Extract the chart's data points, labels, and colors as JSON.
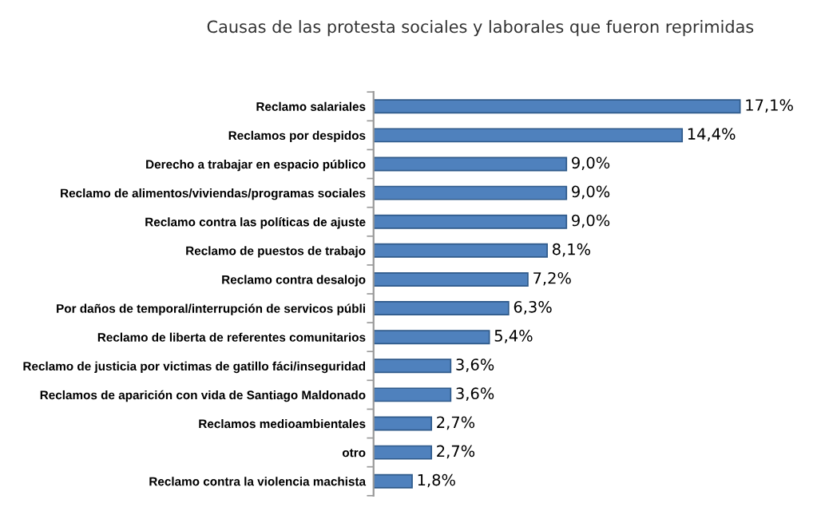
{
  "chart_data": {
    "type": "bar",
    "orientation": "horizontal",
    "title": "Causas de las protesta sociales y laborales que fueron reprimidas",
    "categories": [
      "Reclamo salariales",
      "Reclamos por despidos",
      "Derecho a trabajar en espacio público",
      "Reclamo de alimentos/viviendas/programas sociales",
      "Reclamo contra las políticas de ajuste",
      "Reclamo de puestos de trabajo",
      "Reclamo contra desalojo",
      "Por daños de temporal/interrupción de servicos públi",
      "Reclamo de liberta de referentes comunitarios",
      "Reclamo de justicia por victimas de gatillo fáci/inseguridad",
      "Reclamos de aparición con vida de Santiago Maldonado",
      "Reclamos medioambientales",
      "otro",
      "Reclamo contra la violencia machista"
    ],
    "values": [
      17.1,
      14.4,
      9.0,
      9.0,
      9.0,
      8.1,
      7.2,
      6.3,
      5.4,
      3.6,
      3.6,
      2.7,
      2.7,
      1.8
    ],
    "value_labels": [
      "17,1%",
      "14,4%",
      "9,0%",
      "9,0%",
      "9,0%",
      "8,1%",
      "7,2%",
      "6,3%",
      "5,4%",
      "3,6%",
      "3,6%",
      "2,7%",
      "2,7%",
      "1,8%"
    ],
    "color": "#4f81bd",
    "grid": false,
    "legend": false,
    "tick_labels": "y"
  }
}
